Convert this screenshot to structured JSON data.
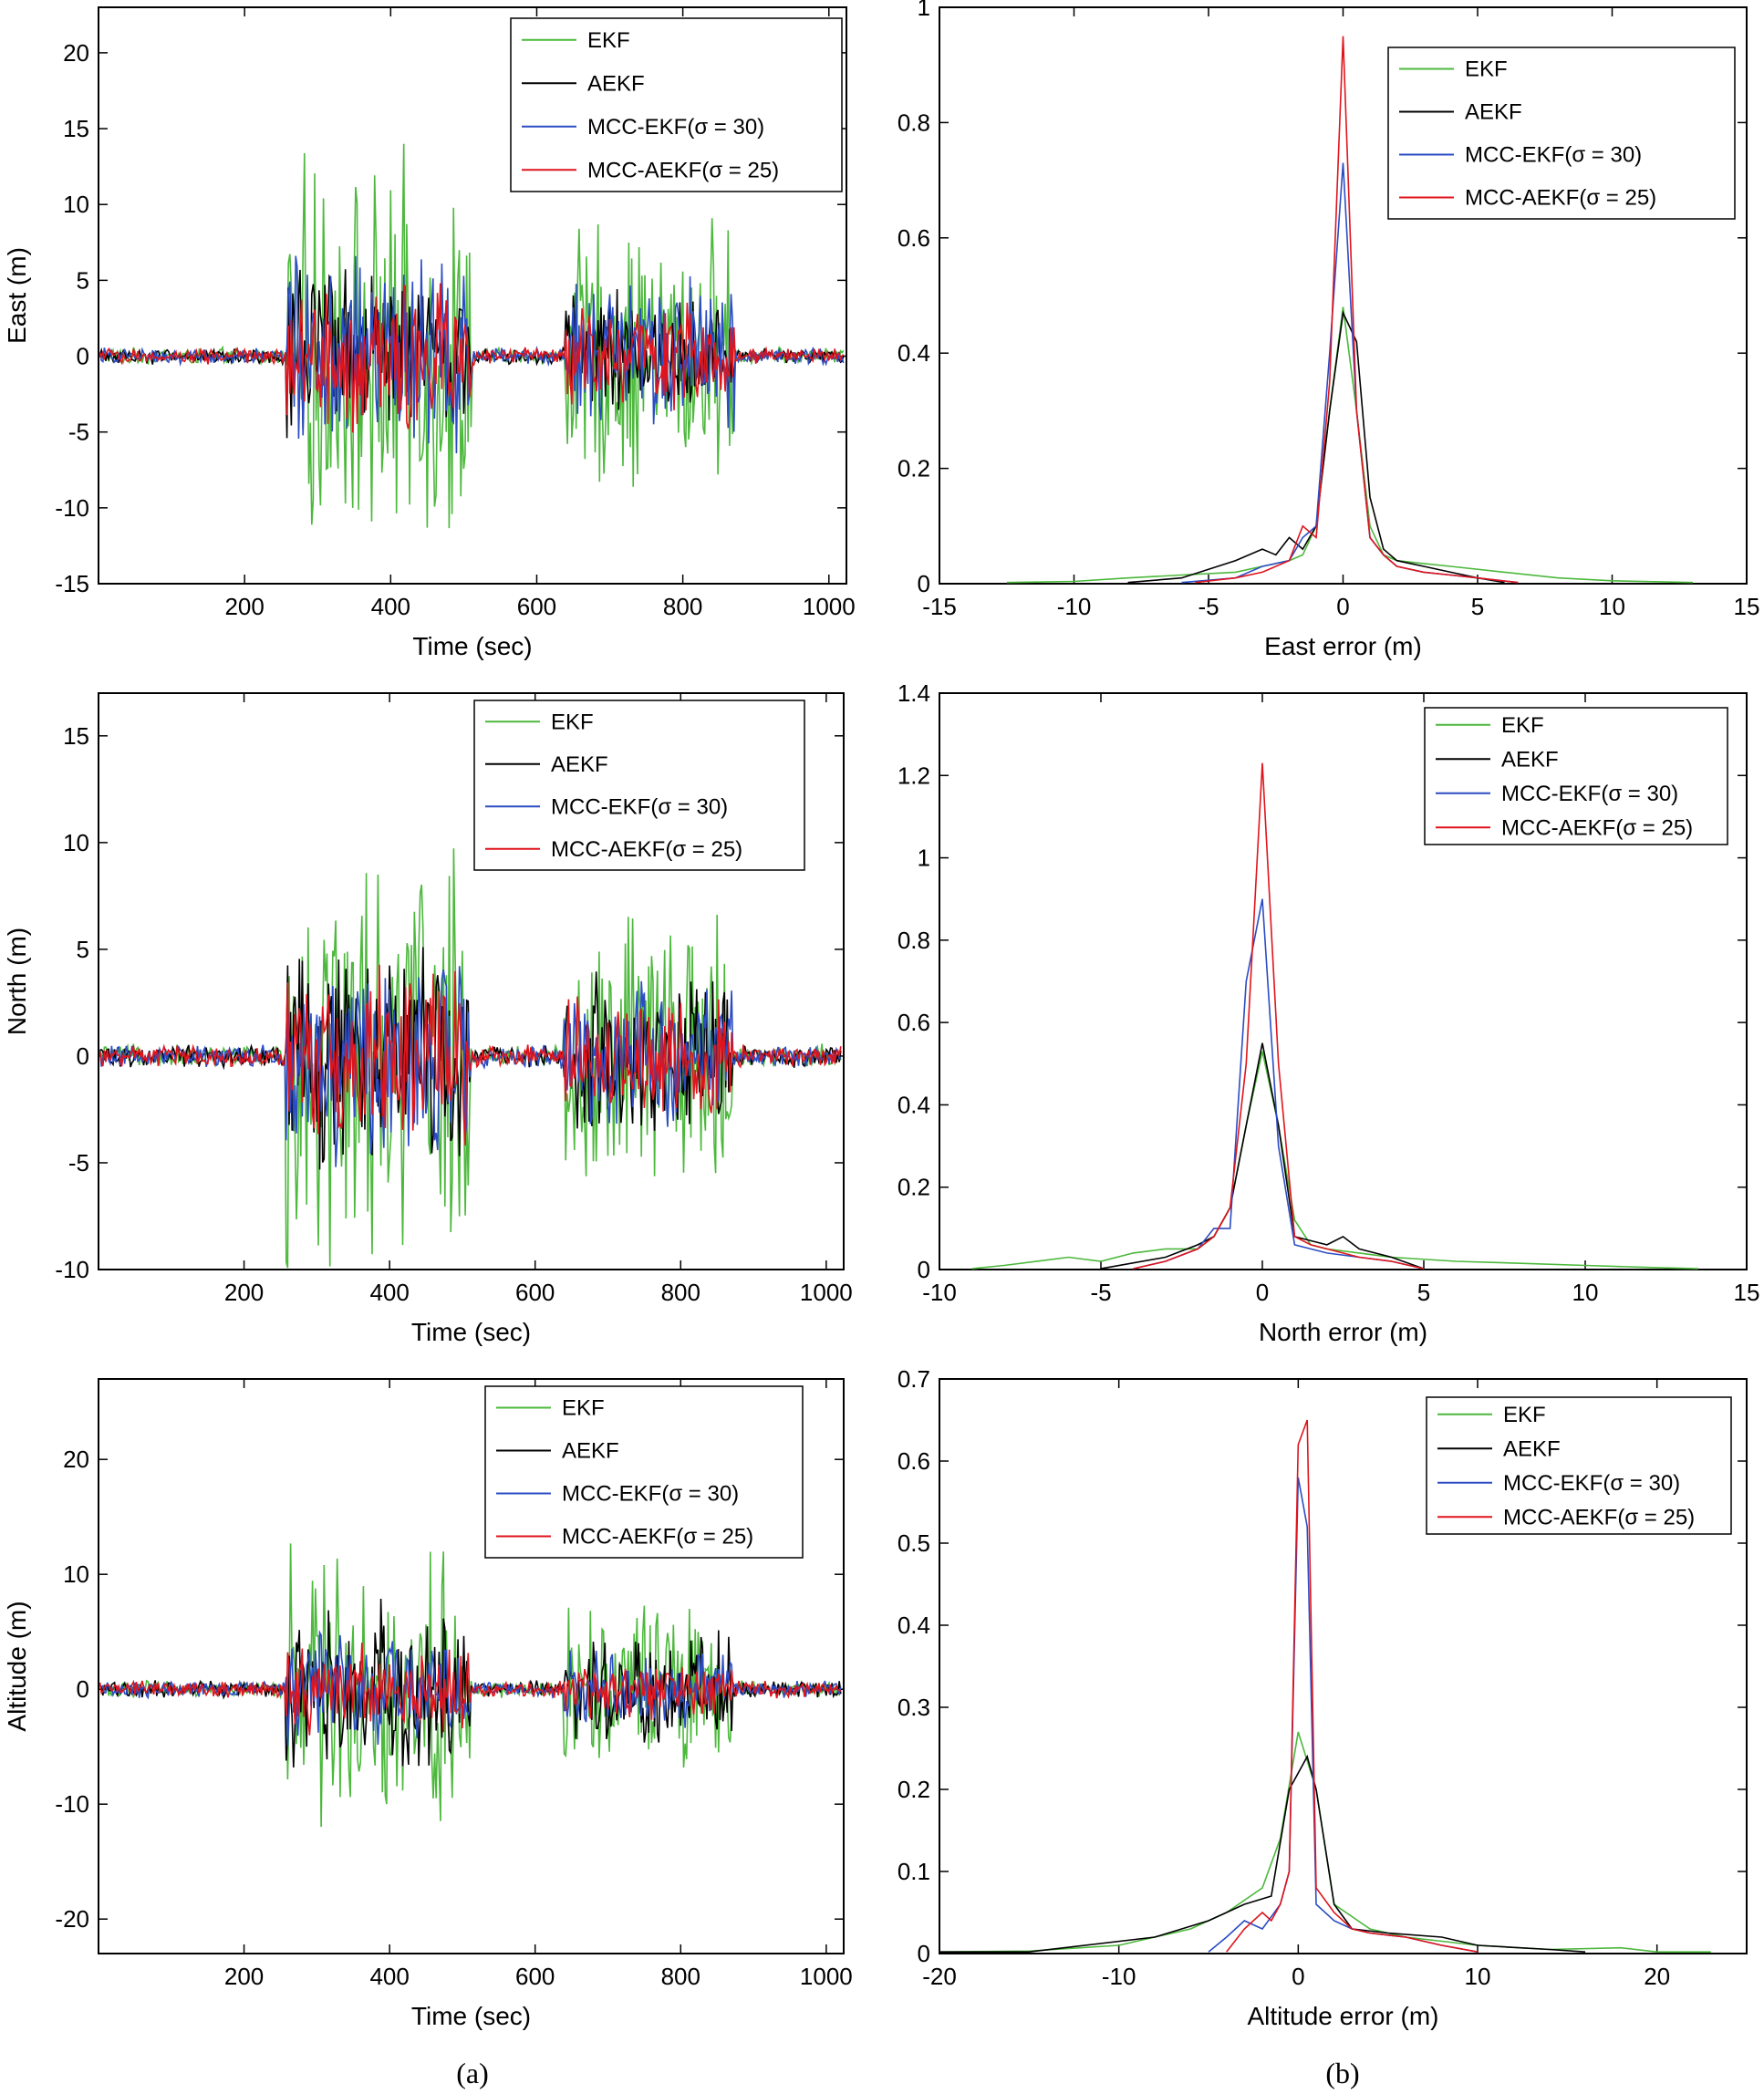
{
  "colors": {
    "EKF": "#4cb83c",
    "AEKF": "#000000",
    "MCC-EKF": "#2b4cc4",
    "MCC-AEKF": "#e0141c"
  },
  "captions": {
    "left": "(a)",
    "right": "(b)"
  },
  "chart_data": [
    {
      "id": "east-time",
      "type": "line",
      "xlabel": "Time (sec)",
      "ylabel": "East (m)",
      "xlim": [
        0,
        1024
      ],
      "ylim": [
        -15,
        23
      ],
      "xticks": [
        200,
        400,
        600,
        800,
        1000
      ],
      "yticks": [
        -15,
        -10,
        -5,
        0,
        5,
        10,
        15,
        20
      ],
      "legend": [
        "EKF",
        "AEKF",
        "MCC-EKF(σ = 30)",
        "MCC-AEKF(σ = 25)"
      ],
      "active_segments": [
        [
          258,
          510,
          14
        ],
        [
          640,
          870,
          10
        ]
      ],
      "amplitude": {
        "EKF": 1.0,
        "AEKF": 0.45,
        "MCC-EKF": 0.55,
        "MCC-AEKF": 0.4
      },
      "calm_noise": 0.6,
      "series_names": [
        "EKF",
        "AEKF",
        "MCC-EKF",
        "MCC-AEKF"
      ]
    },
    {
      "id": "east-error",
      "type": "line",
      "xlabel": "East error (m)",
      "ylabel": "",
      "xlim": [
        -15,
        15
      ],
      "ylim": [
        0,
        1
      ],
      "xticks": [
        -15,
        -10,
        -5,
        0,
        5,
        10,
        15
      ],
      "yticks": [
        0,
        0.2,
        0.4,
        0.6,
        0.8,
        1
      ],
      "legend": [
        "EKF",
        "AEKF",
        "MCC-EKF(σ = 30)",
        "MCC-AEKF(σ = 25)"
      ],
      "series": [
        {
          "name": "EKF",
          "x": [
            -12.5,
            -10,
            -8,
            -6,
            -4,
            -3,
            -2,
            -1.5,
            -1,
            -0.5,
            0,
            0.5,
            1,
            1.5,
            2,
            3,
            4,
            6,
            8,
            10,
            13
          ],
          "y": [
            0.002,
            0.004,
            0.01,
            0.015,
            0.02,
            0.03,
            0.04,
            0.05,
            0.1,
            0.3,
            0.48,
            0.3,
            0.1,
            0.05,
            0.04,
            0.035,
            0.03,
            0.02,
            0.01,
            0.005,
            0.002
          ]
        },
        {
          "name": "AEKF",
          "x": [
            -8,
            -6,
            -4,
            -3,
            -2.5,
            -2,
            -1.5,
            -1,
            -0.5,
            0,
            0.5,
            1,
            1.5,
            2,
            3,
            4,
            5,
            6
          ],
          "y": [
            0.002,
            0.01,
            0.04,
            0.06,
            0.05,
            0.08,
            0.06,
            0.1,
            0.3,
            0.47,
            0.42,
            0.15,
            0.06,
            0.04,
            0.03,
            0.02,
            0.01,
            0.002
          ]
        },
        {
          "name": "MCC-EKF",
          "x": [
            -6,
            -4,
            -3,
            -2,
            -1.5,
            -1,
            -0.5,
            0,
            0.5,
            1,
            1.5,
            2,
            3,
            4,
            5,
            6.5
          ],
          "y": [
            0.002,
            0.01,
            0.03,
            0.04,
            0.08,
            0.1,
            0.4,
            0.73,
            0.3,
            0.08,
            0.05,
            0.03,
            0.02,
            0.015,
            0.01,
            0.002
          ]
        },
        {
          "name": "MCC-AEKF",
          "x": [
            -5.5,
            -4,
            -3,
            -2,
            -1.5,
            -1,
            -0.5,
            0,
            0.5,
            1,
            1.5,
            2,
            3,
            4,
            5,
            6.5
          ],
          "y": [
            0.002,
            0.01,
            0.02,
            0.04,
            0.1,
            0.08,
            0.35,
            0.95,
            0.3,
            0.08,
            0.05,
            0.03,
            0.02,
            0.015,
            0.01,
            0.002
          ]
        }
      ]
    },
    {
      "id": "north-time",
      "type": "line",
      "xlabel": "Time (sec)",
      "ylabel": "North (m)",
      "xlim": [
        0,
        1024
      ],
      "ylim": [
        -10,
        17
      ],
      "xticks": [
        200,
        400,
        600,
        800,
        1000
      ],
      "yticks": [
        -10,
        -5,
        0,
        5,
        10,
        15
      ],
      "legend": [
        "EKF",
        "AEKF",
        "MCC-EKF(σ = 30)",
        "MCC-AEKF(σ = 25)"
      ],
      "active_segments": [
        [
          258,
          510,
          11
        ],
        [
          640,
          870,
          8
        ]
      ],
      "amplitude": {
        "EKF": 1.0,
        "AEKF": 0.55,
        "MCC-EKF": 0.5,
        "MCC-AEKF": 0.4
      },
      "calm_noise": 0.6,
      "series_names": [
        "EKF",
        "AEKF",
        "MCC-EKF",
        "MCC-AEKF"
      ]
    },
    {
      "id": "north-error",
      "type": "line",
      "xlabel": "North error (m)",
      "ylabel": "",
      "xlim": [
        -10,
        15
      ],
      "ylim": [
        0,
        1.4
      ],
      "xticks": [
        -10,
        -5,
        0,
        5,
        10,
        15
      ],
      "yticks": [
        0,
        0.2,
        0.4,
        0.6,
        0.8,
        1,
        1.2,
        1.4
      ],
      "legend": [
        "EKF",
        "AEKF",
        "MCC-EKF(σ = 30)",
        "MCC-AEKF(σ = 25)"
      ],
      "series": [
        {
          "name": "EKF",
          "x": [
            -9,
            -8,
            -6,
            -5,
            -4,
            -3,
            -2,
            -1.5,
            -1,
            -0.5,
            0,
            0.5,
            1,
            1.5,
            2,
            3,
            4,
            6,
            8,
            10,
            12,
            13.5
          ],
          "y": [
            0.002,
            0.01,
            0.03,
            0.02,
            0.04,
            0.05,
            0.05,
            0.08,
            0.15,
            0.35,
            0.53,
            0.35,
            0.12,
            0.06,
            0.05,
            0.04,
            0.03,
            0.02,
            0.015,
            0.01,
            0.005,
            0.002
          ]
        },
        {
          "name": "AEKF",
          "x": [
            -5,
            -3,
            -2,
            -1.5,
            -1,
            -0.5,
            0,
            0.5,
            1,
            1.5,
            2,
            2.5,
            3,
            4,
            5
          ],
          "y": [
            0.002,
            0.03,
            0.06,
            0.08,
            0.15,
            0.35,
            0.55,
            0.35,
            0.08,
            0.07,
            0.06,
            0.08,
            0.05,
            0.03,
            0.002
          ]
        },
        {
          "name": "MCC-EKF",
          "x": [
            -4,
            -3,
            -2,
            -1.5,
            -1,
            -0.5,
            0,
            0.5,
            1,
            1.5,
            2,
            3,
            4,
            5
          ],
          "y": [
            0.002,
            0.02,
            0.05,
            0.1,
            0.1,
            0.7,
            0.9,
            0.3,
            0.06,
            0.05,
            0.04,
            0.03,
            0.02,
            0.002
          ]
        },
        {
          "name": "MCC-AEKF",
          "x": [
            -4,
            -3,
            -2,
            -1.5,
            -1,
            -0.5,
            0,
            0.5,
            1,
            1.5,
            2,
            3,
            4,
            5
          ],
          "y": [
            0.002,
            0.02,
            0.05,
            0.08,
            0.15,
            0.5,
            1.23,
            0.5,
            0.08,
            0.06,
            0.05,
            0.03,
            0.02,
            0.002
          ]
        }
      ]
    },
    {
      "id": "altitude-time",
      "type": "line",
      "xlabel": "Time (sec)",
      "ylabel": "Altitude (m)",
      "xlim": [
        0,
        1024
      ],
      "ylim": [
        -23,
        27
      ],
      "xticks": [
        200,
        400,
        600,
        800,
        1000
      ],
      "yticks": [
        -20,
        -10,
        0,
        10,
        20
      ],
      "legend": [
        "EKF",
        "AEKF",
        "MCC-EKF(σ = 30)",
        "MCC-AEKF(σ = 25)"
      ],
      "active_segments": [
        [
          258,
          510,
          14
        ],
        [
          640,
          870,
          9
        ]
      ],
      "amplitude": {
        "EKF": 1.0,
        "AEKF": 0.6,
        "MCC-EKF": 0.4,
        "MCC-AEKF": 0.3
      },
      "calm_noise": 0.8,
      "series_names": [
        "EKF",
        "AEKF",
        "MCC-EKF",
        "MCC-AEKF"
      ]
    },
    {
      "id": "altitude-error",
      "type": "line",
      "xlabel": "Altitude error (m)",
      "ylabel": "",
      "xlim": [
        -20,
        25
      ],
      "ylim": [
        0,
        0.7
      ],
      "xticks": [
        -20,
        -10,
        0,
        10,
        20
      ],
      "yticks": [
        0,
        0.1,
        0.2,
        0.3,
        0.4,
        0.5,
        0.6,
        0.7
      ],
      "legend": [
        "EKF",
        "AEKF",
        "MCC-EKF(σ = 30)",
        "MCC-AEKF(σ = 25)"
      ],
      "series": [
        {
          "name": "EKF",
          "x": [
            -20,
            -15,
            -10,
            -6,
            -4,
            -2,
            -1,
            0,
            1,
            2,
            4,
            6,
            8,
            10,
            14,
            18,
            20,
            23
          ],
          "y": [
            0.002,
            0.003,
            0.01,
            0.03,
            0.05,
            0.08,
            0.14,
            0.27,
            0.2,
            0.06,
            0.03,
            0.02,
            0.015,
            0.01,
            0.005,
            0.007,
            0.002,
            0.002
          ]
        },
        {
          "name": "AEKF",
          "x": [
            -20,
            -15,
            -8,
            -5,
            -3,
            -1.5,
            -0.5,
            0.5,
            1,
            2,
            3,
            5,
            8,
            10,
            14,
            16
          ],
          "y": [
            0.002,
            0.002,
            0.02,
            0.04,
            0.06,
            0.07,
            0.2,
            0.24,
            0.2,
            0.06,
            0.03,
            0.025,
            0.02,
            0.01,
            0.005,
            0.002
          ]
        },
        {
          "name": "MCC-EKF",
          "x": [
            -5,
            -4,
            -3,
            -2,
            -1,
            -0.5,
            0,
            0.5,
            1,
            2,
            3,
            4,
            6,
            8,
            10
          ],
          "y": [
            0.002,
            0.02,
            0.04,
            0.03,
            0.06,
            0.1,
            0.58,
            0.52,
            0.06,
            0.04,
            0.03,
            0.025,
            0.02,
            0.01,
            0.002
          ]
        },
        {
          "name": "MCC-AEKF",
          "x": [
            -4,
            -3,
            -2,
            -1.5,
            -1,
            -0.5,
            0,
            0.5,
            1,
            2,
            3,
            4,
            6,
            8,
            10
          ],
          "y": [
            0.002,
            0.03,
            0.05,
            0.04,
            0.06,
            0.1,
            0.62,
            0.65,
            0.08,
            0.05,
            0.03,
            0.025,
            0.02,
            0.01,
            0.002
          ]
        }
      ]
    }
  ]
}
